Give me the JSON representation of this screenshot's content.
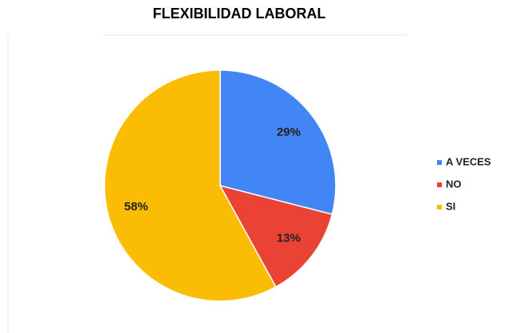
{
  "chart_data": {
    "type": "pie",
    "title": "FLEXIBILIDAD LABORAL",
    "categories": [
      "A VECES",
      "NO",
      "SI"
    ],
    "values": [
      29,
      13,
      58
    ],
    "value_labels": [
      "29%",
      "13%",
      "58%"
    ],
    "colors": [
      "#4285f4",
      "#ea4335",
      "#fbbc04"
    ],
    "legend": "right"
  }
}
